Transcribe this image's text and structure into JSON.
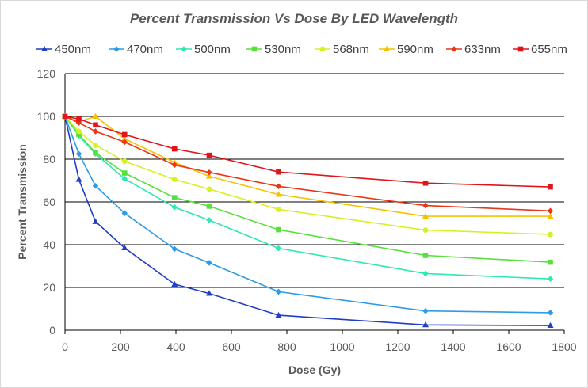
{
  "chart_data": {
    "type": "line",
    "title": "Percent Transmission Vs Dose By LED Wavelength",
    "xlabel": "Dose (Gy)",
    "ylabel": "Percent Transmission",
    "xlim": [
      0,
      1800
    ],
    "ylim": [
      0,
      120
    ],
    "xticks": [
      0,
      200,
      400,
      600,
      800,
      1000,
      1200,
      1400,
      1600,
      1800
    ],
    "yticks": [
      0,
      20,
      40,
      60,
      80,
      100,
      120
    ],
    "grid": "horizontal",
    "legend_position": "top",
    "x": [
      0,
      50,
      110,
      215,
      395,
      520,
      770,
      1300,
      1750
    ],
    "series": [
      {
        "name": "450nm",
        "color": "#1f3fc6",
        "marker": "triangle",
        "values": [
          100,
          70.5,
          50.8,
          38.5,
          21.5,
          17.2,
          7.0,
          2.5,
          2.2
        ]
      },
      {
        "name": "470nm",
        "color": "#2e9be6",
        "marker": "diamond",
        "values": [
          100,
          82.5,
          67.5,
          54.7,
          38.0,
          31.5,
          18.0,
          9.0,
          8.2
        ]
      },
      {
        "name": "500nm",
        "color": "#2de8b2",
        "marker": "diamond",
        "values": [
          100,
          91.0,
          82.5,
          70.8,
          57.5,
          51.5,
          38.3,
          26.5,
          24.0
        ]
      },
      {
        "name": "530nm",
        "color": "#58e03c",
        "marker": "square",
        "values": [
          100,
          91.5,
          83.0,
          73.5,
          62.0,
          58.0,
          47.0,
          35.0,
          31.8
        ]
      },
      {
        "name": "568nm",
        "color": "#d7f024",
        "marker": "circle",
        "values": [
          100,
          93.0,
          86.5,
          79.0,
          70.5,
          66.0,
          56.5,
          46.8,
          44.8
        ]
      },
      {
        "name": "590nm",
        "color": "#f5c200",
        "marker": "triangle",
        "values": [
          100,
          97.5,
          100.0,
          89.5,
          78.5,
          72.0,
          63.5,
          53.3,
          53.3
        ]
      },
      {
        "name": "633nm",
        "color": "#ea3516",
        "marker": "diamond",
        "values": [
          100,
          97.0,
          93.0,
          88.0,
          77.3,
          73.8,
          67.3,
          58.3,
          55.8
        ]
      },
      {
        "name": "655nm",
        "color": "#e0141a",
        "marker": "square",
        "values": [
          100,
          98.8,
          96.0,
          91.5,
          84.8,
          81.8,
          74.0,
          68.8,
          67.0
        ]
      }
    ]
  }
}
